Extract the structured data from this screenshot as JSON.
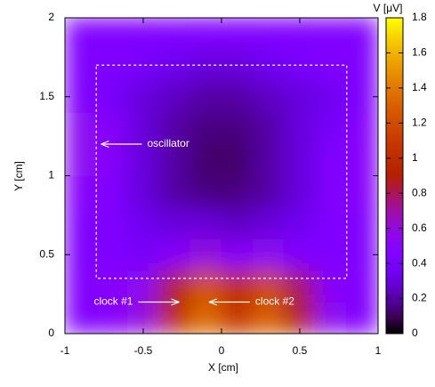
{
  "chart_data": {
    "type": "heatmap",
    "xlabel": "X [cm]",
    "ylabel": "Y [cm]",
    "colorbar_label": "V [μV]",
    "colormap": "gnuplot",
    "xlim": [
      -1,
      1
    ],
    "ylim": [
      0,
      2
    ],
    "xticks": [
      -1,
      -0.5,
      0,
      0.5,
      1
    ],
    "yticks": [
      0,
      0.5,
      1,
      1.5,
      2
    ],
    "clim": [
      0,
      1.8
    ],
    "cticks": [
      0,
      0.2,
      0.4,
      0.6,
      0.8,
      1,
      1.2,
      1.4,
      1.6,
      1.8
    ],
    "x": [
      -0.9,
      -0.7,
      -0.5,
      -0.3,
      -0.1,
      0.1,
      0.3,
      0.5,
      0.7,
      0.9
    ],
    "y": [
      0.1,
      0.3,
      0.5,
      0.7,
      0.9,
      1.1,
      1.3,
      1.5,
      1.7,
      1.9
    ],
    "z": [
      [
        0.45,
        0.5,
        0.6,
        1.0,
        1.35,
        1.05,
        1.3,
        0.9,
        0.55,
        0.45
      ],
      [
        0.45,
        0.5,
        0.55,
        0.9,
        1.25,
        1.0,
        1.2,
        0.8,
        0.5,
        0.45
      ],
      [
        0.45,
        0.45,
        0.4,
        0.5,
        0.6,
        0.5,
        0.55,
        0.45,
        0.45,
        0.45
      ],
      [
        0.45,
        0.45,
        0.35,
        0.3,
        0.3,
        0.25,
        0.3,
        0.35,
        0.45,
        0.45
      ],
      [
        0.5,
        0.45,
        0.3,
        0.2,
        0.15,
        0.15,
        0.2,
        0.3,
        0.45,
        0.5
      ],
      [
        0.55,
        0.5,
        0.3,
        0.2,
        0.12,
        0.12,
        0.2,
        0.3,
        0.45,
        0.5
      ],
      [
        0.55,
        0.5,
        0.3,
        0.2,
        0.15,
        0.15,
        0.2,
        0.3,
        0.4,
        0.5
      ],
      [
        0.45,
        0.4,
        0.3,
        0.25,
        0.2,
        0.2,
        0.25,
        0.3,
        0.35,
        0.45
      ],
      [
        0.45,
        0.45,
        0.4,
        0.35,
        0.3,
        0.3,
        0.35,
        0.4,
        0.45,
        0.45
      ],
      [
        0.45,
        0.45,
        0.45,
        0.45,
        0.45,
        0.45,
        0.45,
        0.45,
        0.45,
        0.45
      ]
    ],
    "region": {
      "x": [
        -0.8,
        0.8
      ],
      "y": [
        0.35,
        1.7
      ]
    },
    "annotations": [
      {
        "text": "oscillator",
        "xy": [
          -0.77,
          1.2
        ]
      },
      {
        "text": "clock #1",
        "xy": [
          -0.27,
          0.2
        ]
      },
      {
        "text": "clock #2",
        "xy": [
          -0.08,
          0.2
        ]
      }
    ]
  }
}
